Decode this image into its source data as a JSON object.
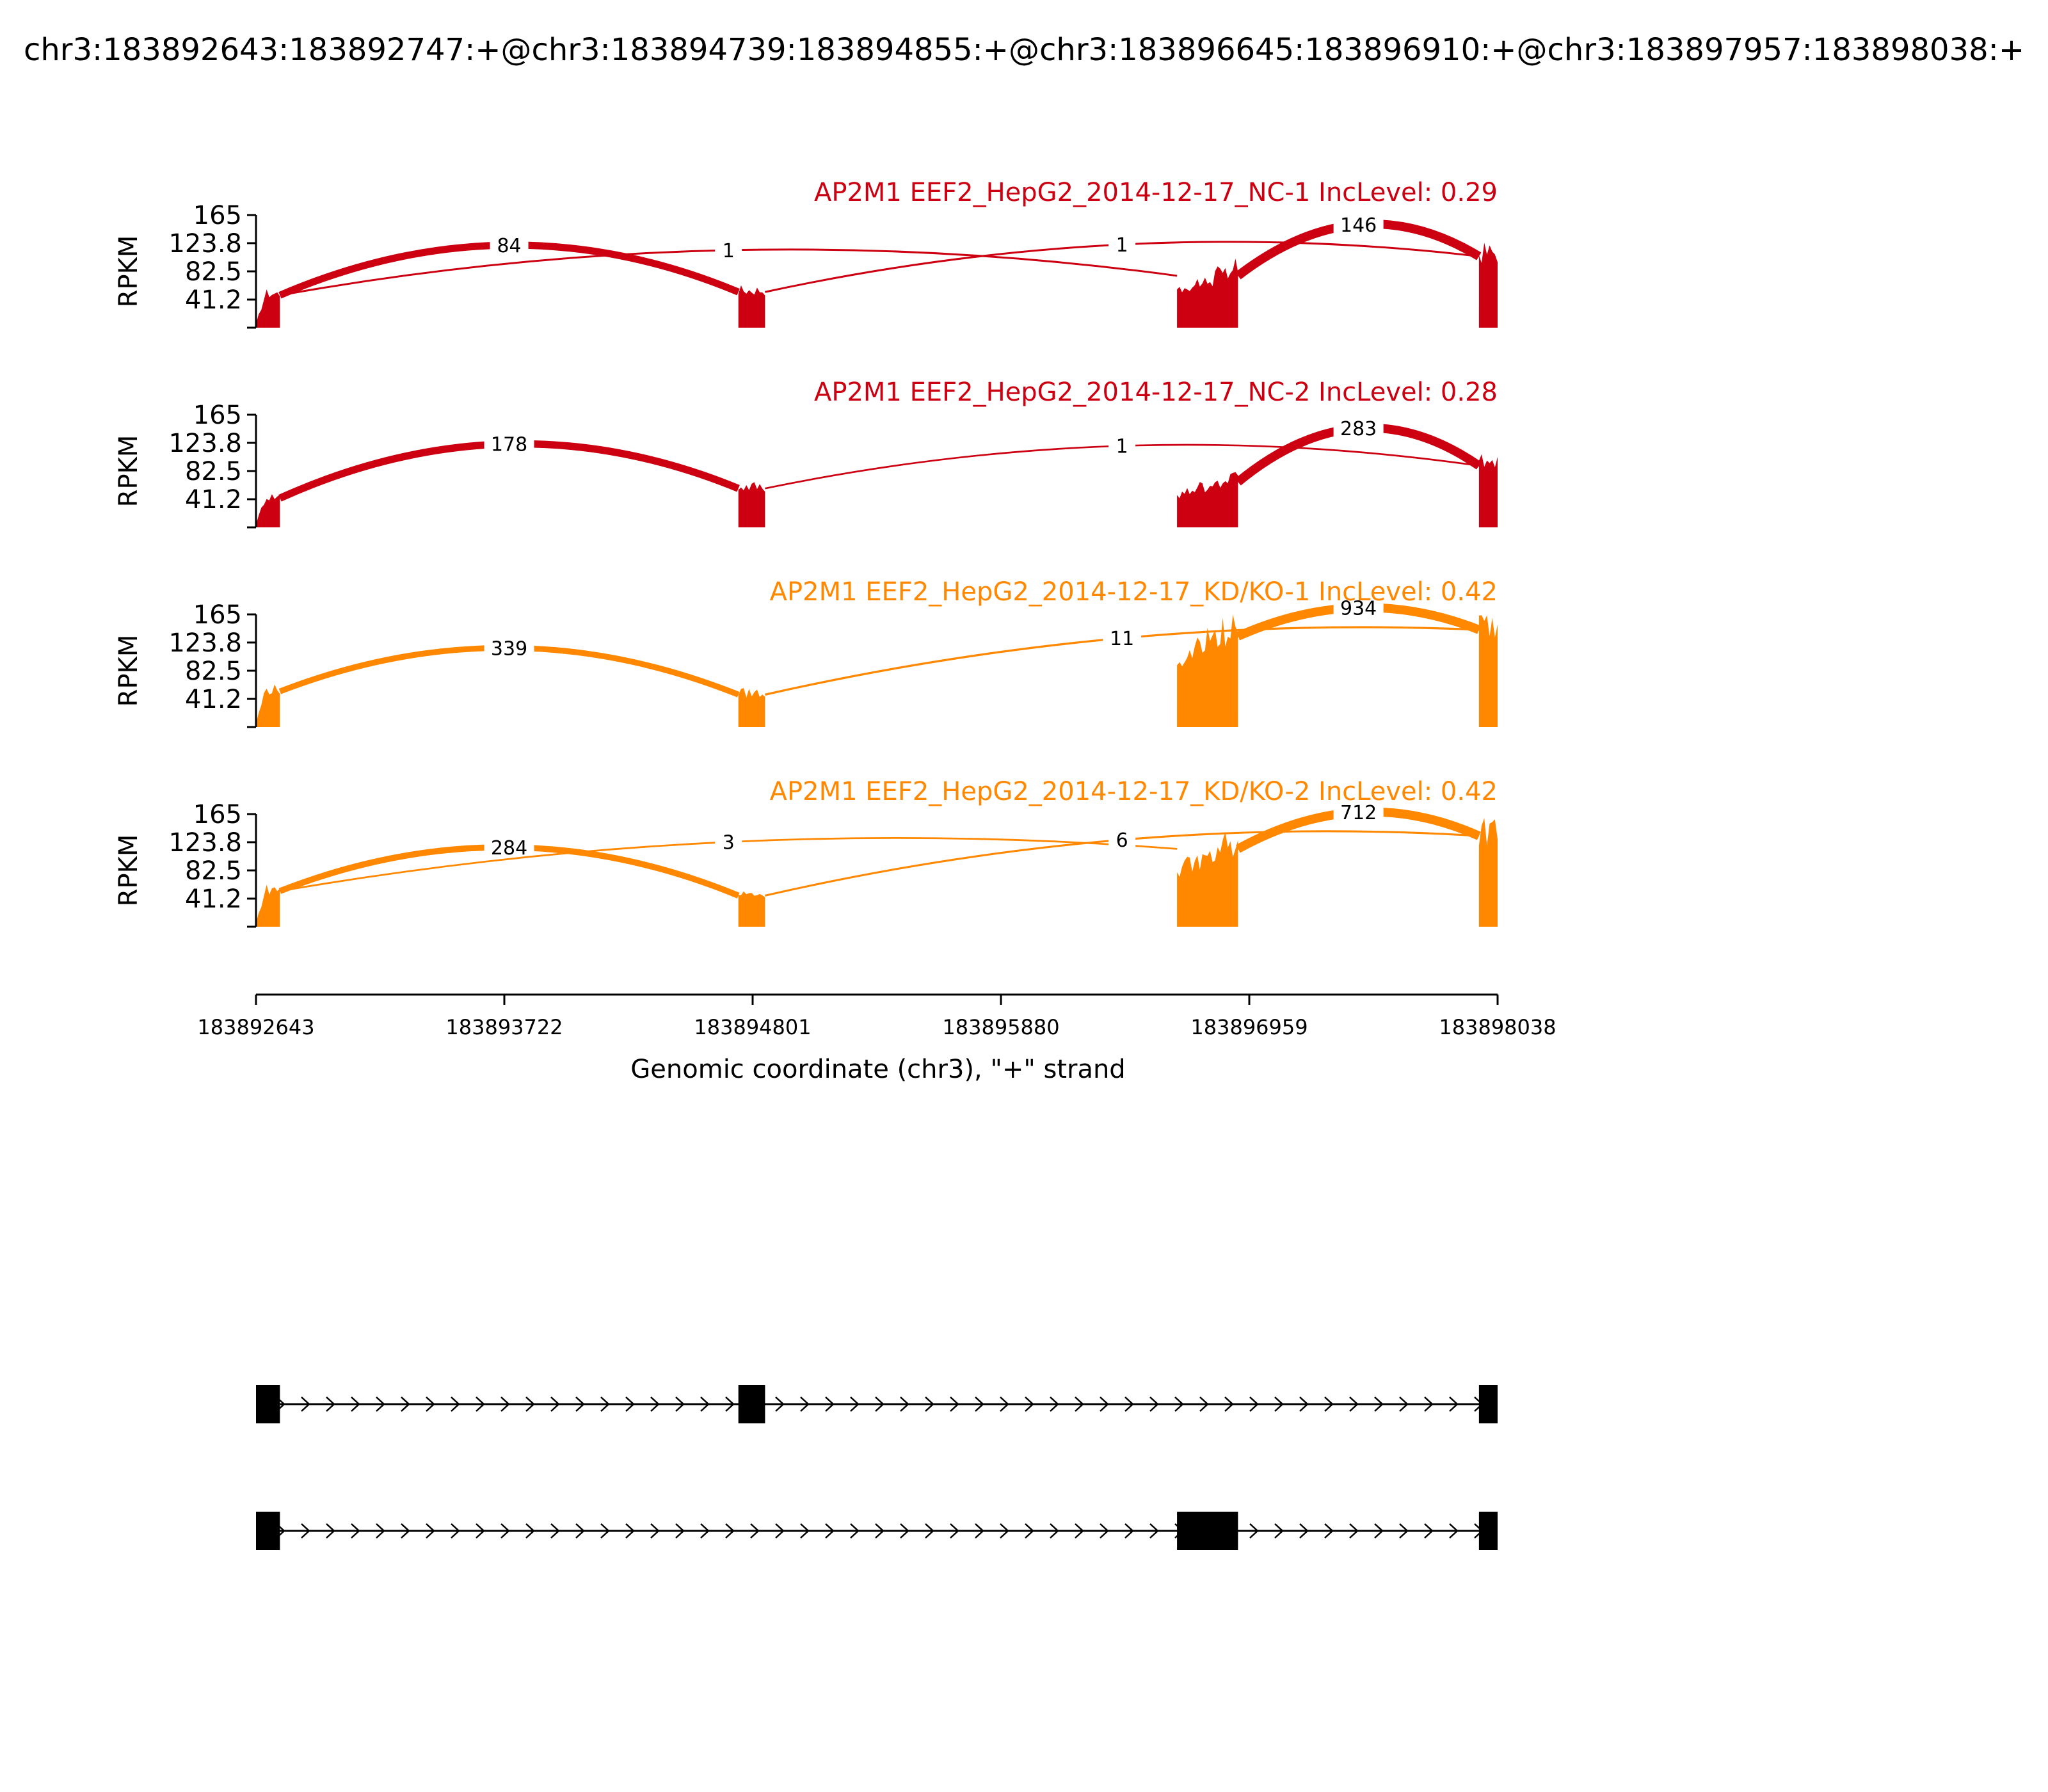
{
  "chart_data": {
    "type": "area",
    "title": "chr3:183892643:183892747:+@chr3:183894739:183894855:+@chr3:183896645:183896910:+@chr3:183897957:183898038:+",
    "ylabel": "RPKM",
    "xlabel": "Genomic coordinate (chr3), \"+\" strand",
    "xlim": [
      183892643,
      183898038
    ],
    "ylim": [
      0,
      165
    ],
    "y_ticks": [
      "41.2",
      "82.5",
      "123.8",
      "165"
    ],
    "x_ticks": [
      "183892643",
      "183893722",
      "183894801",
      "183895880",
      "183896959",
      "183898038"
    ],
    "exons": [
      {
        "start": 183892643,
        "end": 183892747
      },
      {
        "start": 183894739,
        "end": 183894855
      },
      {
        "start": 183896645,
        "end": 183896910
      },
      {
        "start": 183897957,
        "end": 183898038
      }
    ],
    "isoforms": [
      {
        "exons": [
          [
            183892643,
            183892747
          ],
          [
            183894739,
            183894855
          ],
          [
            183897957,
            183898038
          ]
        ]
      },
      {
        "exons": [
          [
            183892643,
            183892747
          ],
          [
            183896645,
            183896910
          ],
          [
            183897957,
            183898038
          ]
        ]
      }
    ],
    "series": [
      {
        "name": "AP2M1 EEF2_HepG2_2014-12-17_NC-1 IncLevel: 0.29",
        "color": "#cc0011",
        "exon_levels": [
          50,
          55,
          80,
          110
        ],
        "junctions": [
          {
            "from": 183892747,
            "to": 183894739,
            "count": "84",
            "arc": "up"
          },
          {
            "from": 183892747,
            "to": 183896645,
            "count": "1",
            "arc": "up"
          },
          {
            "from": 183894855,
            "to": 183897957,
            "count": "1",
            "arc": "up"
          },
          {
            "from": 183896910,
            "to": 183897957,
            "count": "146",
            "arc": "up"
          }
        ]
      },
      {
        "name": "AP2M1 EEF2_HepG2_2014-12-17_NC-2 IncLevel: 0.28",
        "color": "#cc0011",
        "exon_levels": [
          45,
          60,
          70,
          95
        ],
        "junctions": [
          {
            "from": 183892747,
            "to": 183894739,
            "count": "178",
            "arc": "up"
          },
          {
            "from": 183894855,
            "to": 183897957,
            "count": "1",
            "arc": "up"
          },
          {
            "from": 183896910,
            "to": 183897957,
            "count": "283",
            "arc": "up"
          }
        ]
      },
      {
        "name": "AP2M1 EEF2_HepG2_2014-12-17_KD/KO-1 IncLevel: 0.42",
        "color": "#ff8800",
        "exon_levels": [
          55,
          50,
          140,
          150
        ],
        "junctions": [
          {
            "from": 183892747,
            "to": 183894739,
            "count": "339",
            "arc": "up"
          },
          {
            "from": 183894855,
            "to": 183897957,
            "count": "11",
            "arc": "up"
          },
          {
            "from": 183896910,
            "to": 183897957,
            "count": "934",
            "arc": "up"
          }
        ]
      },
      {
        "name": "AP2M1 EEF2_HepG2_2014-12-17_KD/KO-2 IncLevel: 0.42",
        "color": "#ff8800",
        "exon_levels": [
          55,
          48,
          120,
          140
        ],
        "junctions": [
          {
            "from": 183892747,
            "to": 183894739,
            "count": "284",
            "arc": "up"
          },
          {
            "from": 183892747,
            "to": 183896645,
            "count": "3",
            "arc": "up"
          },
          {
            "from": 183894855,
            "to": 183897957,
            "count": "6",
            "arc": "up"
          },
          {
            "from": 183896910,
            "to": 183897957,
            "count": "712",
            "arc": "up"
          }
        ]
      }
    ]
  }
}
